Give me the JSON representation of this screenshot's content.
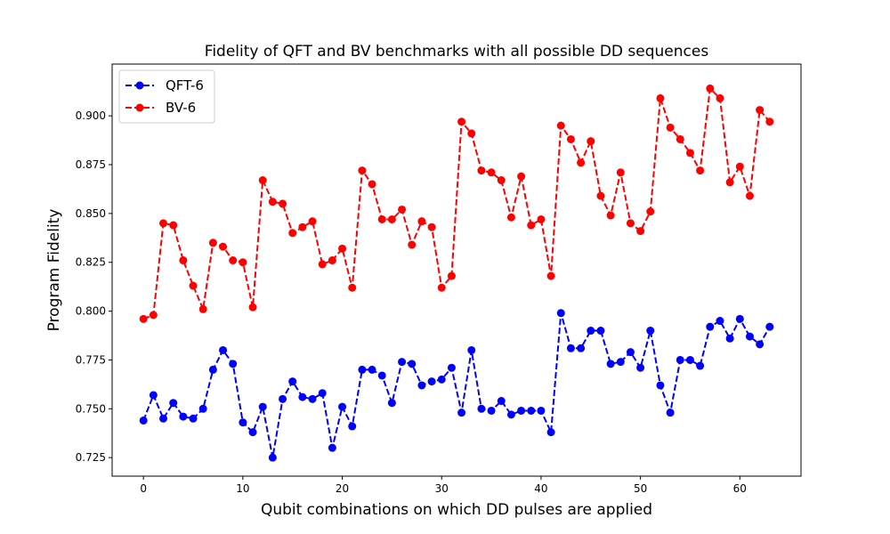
{
  "chart_data": {
    "type": "line",
    "title": "Fidelity of QFT and BV benchmarks with all possible DD sequences",
    "xlabel": "Qubit combinations on which DD pulses are applied",
    "ylabel": "Program Fidelity",
    "xlim": [
      -3.15,
      66.15
    ],
    "ylim": [
      0.7155,
      0.9265
    ],
    "xticks": [
      0,
      10,
      20,
      30,
      40,
      50,
      60
    ],
    "yticks": [
      0.725,
      0.75,
      0.775,
      0.8,
      0.825,
      0.85,
      0.875,
      0.9
    ],
    "ytick_labels": [
      "0.725",
      "0.750",
      "0.775",
      "0.800",
      "0.825",
      "0.850",
      "0.875",
      "0.900"
    ],
    "grid": false,
    "legend_position": "upper-left",
    "x": [
      0,
      1,
      2,
      3,
      4,
      5,
      6,
      7,
      8,
      9,
      10,
      11,
      12,
      13,
      14,
      15,
      16,
      17,
      18,
      19,
      20,
      21,
      22,
      23,
      24,
      25,
      26,
      27,
      28,
      29,
      30,
      31,
      32,
      33,
      34,
      35,
      36,
      37,
      38,
      39,
      40,
      41,
      42,
      43,
      44,
      45,
      46,
      47,
      48,
      49,
      50,
      51,
      52,
      53,
      54,
      55,
      56,
      57,
      58,
      59,
      60,
      61,
      62,
      63
    ],
    "series": [
      {
        "name": "QFT-6",
        "color": "#0000ff",
        "values": [
          0.744,
          0.757,
          0.745,
          0.753,
          0.746,
          0.745,
          0.75,
          0.77,
          0.78,
          0.773,
          0.743,
          0.738,
          0.751,
          0.725,
          0.755,
          0.764,
          0.756,
          0.755,
          0.758,
          0.73,
          0.751,
          0.741,
          0.77,
          0.77,
          0.767,
          0.753,
          0.774,
          0.773,
          0.762,
          0.764,
          0.765,
          0.771,
          0.748,
          0.78,
          0.75,
          0.749,
          0.754,
          0.747,
          0.749,
          0.749,
          0.749,
          0.738,
          0.799,
          0.781,
          0.781,
          0.79,
          0.79,
          0.773,
          0.774,
          0.779,
          0.771,
          0.79,
          0.762,
          0.748,
          0.775,
          0.775,
          0.772,
          0.792,
          0.795,
          0.786,
          0.796,
          0.787,
          0.783,
          0.792
        ]
      },
      {
        "name": "BV-6",
        "color": "#ff0000",
        "values": [
          0.796,
          0.798,
          0.845,
          0.844,
          0.826,
          0.813,
          0.801,
          0.835,
          0.833,
          0.826,
          0.825,
          0.802,
          0.867,
          0.856,
          0.855,
          0.84,
          0.843,
          0.846,
          0.824,
          0.826,
          0.832,
          0.812,
          0.872,
          0.865,
          0.847,
          0.847,
          0.852,
          0.834,
          0.846,
          0.843,
          0.812,
          0.818,
          0.897,
          0.891,
          0.872,
          0.871,
          0.867,
          0.848,
          0.869,
          0.844,
          0.847,
          0.818,
          0.895,
          0.888,
          0.876,
          0.887,
          0.859,
          0.849,
          0.871,
          0.845,
          0.841,
          0.851,
          0.909,
          0.894,
          0.888,
          0.881,
          0.872,
          0.914,
          0.909,
          0.866,
          0.874,
          0.859,
          0.903,
          0.897
        ]
      }
    ]
  }
}
